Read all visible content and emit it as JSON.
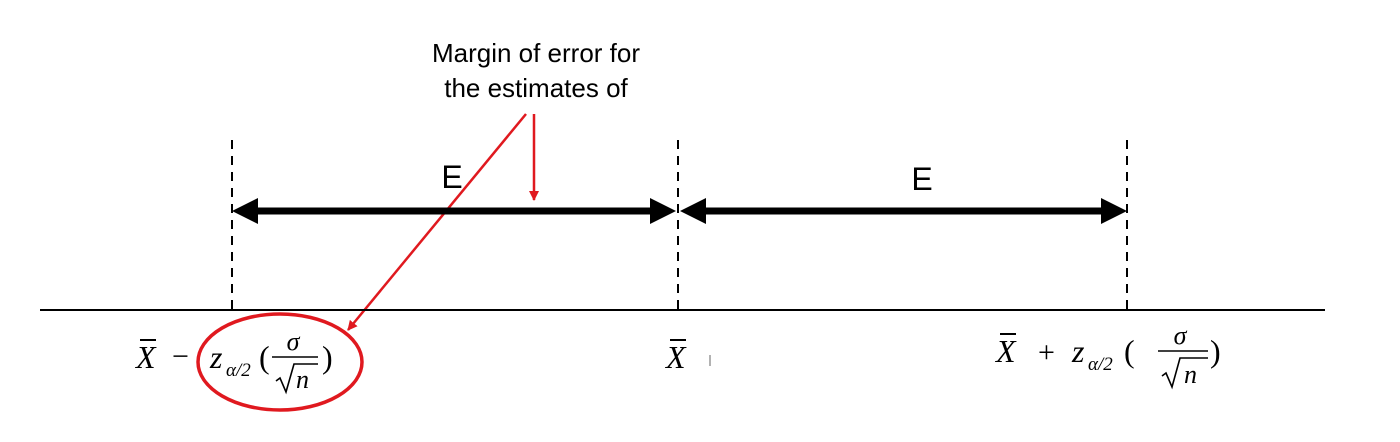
{
  "annotation": {
    "line1": "Margin of error for",
    "line2": "the estimates of",
    "color": "#e0191f"
  },
  "segments": {
    "left_label": "E",
    "right_label": "E"
  },
  "axis_labels": {
    "left": {
      "xbar": "X",
      "minus": "−",
      "z": "z",
      "sub": "α/2",
      "open_paren": "(",
      "numerator": "σ",
      "radicand": "n",
      "close_paren": ")"
    },
    "center": {
      "xbar": "X"
    },
    "right": {
      "xbar": "X",
      "plus": "+",
      "z": "z",
      "sub": "α/2",
      "open_paren": "(",
      "numerator": "σ",
      "radicand": "n",
      "close_paren": ")"
    }
  },
  "colors": {
    "ink": "#000000",
    "highlight": "#e0191f"
  }
}
